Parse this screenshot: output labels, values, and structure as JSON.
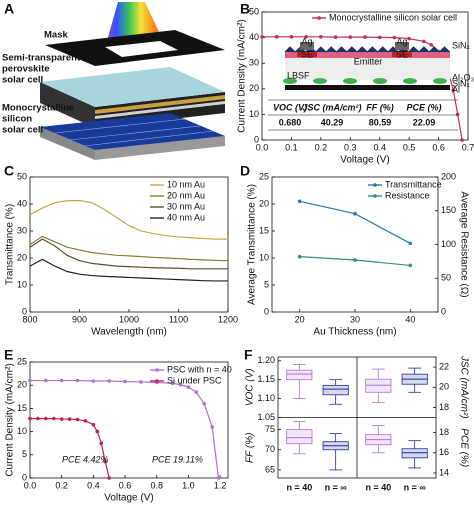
{
  "illustration": {
    "label": "A",
    "mask": "Mask",
    "perovskite": [
      "Semi-transparent",
      "perovskite",
      "solar cell"
    ],
    "silicon": [
      "Monocrystalline",
      "silicon",
      "solar cell"
    ]
  },
  "chart_data": [
    {
      "type": "line",
      "label": "B",
      "xlabel": "Voltage (V)",
      "ylabel": "Current Density (mA/cm²)",
      "xlim": [
        0,
        0.7
      ],
      "ylim": [
        0,
        50
      ],
      "xticks": [
        {
          "value": 0,
          "label": "0.0"
        },
        0.1,
        0.2,
        0.3,
        0.4,
        0.5,
        0.6,
        0.7
      ],
      "yticks": [
        0,
        10,
        20,
        30,
        40,
        50
      ],
      "markers": true,
      "legend": "upper center",
      "series": [
        {
          "name": "Monocrystalline silicon solar cell",
          "color": "#c0305a",
          "x": [
            0,
            0.05,
            0.1,
            0.15,
            0.2,
            0.25,
            0.3,
            0.35,
            0.4,
            0.45,
            0.5,
            0.55,
            0.575,
            0.6,
            0.625,
            0.65,
            0.665,
            0.68
          ],
          "values": [
            40.3,
            40.3,
            40.3,
            40.3,
            40.3,
            40.2,
            40.2,
            40.2,
            40.1,
            40.0,
            39.6,
            38.5,
            37.2,
            34.5,
            29.5,
            19.5,
            10,
            0
          ]
        }
      ],
      "inset": [
        "Ag",
        "Ag",
        "SiNₓ",
        "Emitter",
        "SE",
        "SE",
        "LBSF",
        "Al₂O₃",
        "SiNₓ",
        "Al"
      ],
      "table": {
        "header": [
          "VOC (V)",
          "JSC (mA/cm²)",
          "FF (%)",
          "PCE (%)"
        ],
        "row": [
          "0.680",
          "40.29",
          "80.59",
          "22.09"
        ]
      }
    },
    {
      "type": "line",
      "label": "C",
      "xlabel": "Wavelength (nm)",
      "ylabel": "Transmittance (%)",
      "xlim": [
        800,
        1200
      ],
      "ylim": [
        0,
        50
      ],
      "xticks": [
        800,
        900,
        1000,
        1100,
        1200
      ],
      "yticks": [
        0,
        10,
        20,
        30,
        40,
        50
      ],
      "legend": "upper right",
      "x": [
        800,
        825,
        850,
        875,
        900,
        925,
        950,
        975,
        1000,
        1025,
        1050,
        1075,
        1100,
        1125,
        1150,
        1175,
        1200
      ],
      "series": [
        {
          "name": "10 nm Au",
          "color": "#c8a845",
          "values": [
            36,
            38.5,
            40.5,
            41.2,
            41.3,
            40.5,
            38,
            35,
            32,
            30,
            29,
            28.3,
            27.8,
            27.5,
            27.2,
            27,
            27
          ]
        },
        {
          "name": "20 nm Au",
          "color": "#8c7a35",
          "values": [
            25,
            28,
            26,
            24,
            23,
            22,
            21.5,
            21,
            20.8,
            20.5,
            20.2,
            20,
            19.8,
            19.5,
            19.3,
            19.1,
            19
          ]
        },
        {
          "name": "30 nm Au",
          "color": "#5a5030",
          "values": [
            24,
            27,
            24.5,
            21,
            19,
            18,
            17.5,
            17,
            16.8,
            16.6,
            16.4,
            16.3,
            16.2,
            16,
            16,
            16,
            16
          ]
        },
        {
          "name": "40 nm Au",
          "color": "#222222",
          "values": [
            17,
            19.5,
            17,
            15,
            14,
            13.5,
            13.2,
            13,
            12.8,
            12.6,
            12.4,
            12.2,
            12,
            11.8,
            11.6,
            11.5,
            11.5
          ]
        }
      ]
    },
    {
      "type": "line",
      "label": "D",
      "xlabel": "Au Thickness (nm)",
      "ylabel": "Average Transmittance (%)",
      "y2label": "Average Resistance (Ω)",
      "xlim": [
        15,
        45
      ],
      "ylim": [
        0,
        25
      ],
      "y2lim": [
        0,
        200
      ],
      "xticks": [
        20,
        30,
        40
      ],
      "yticks": [
        0,
        5,
        10,
        15,
        20,
        25
      ],
      "y2ticks": [
        0,
        50,
        100,
        150,
        200
      ],
      "markers": true,
      "legend": "upper right",
      "x": [
        20,
        30,
        40
      ],
      "series": [
        {
          "name": "Transmittance",
          "color": "#2a78b0",
          "values": [
            20.5,
            18.2,
            12.7
          ]
        },
        {
          "name": "Resistance",
          "color": "#3a8a80",
          "axis": "y2",
          "values": [
            82,
            77,
            69
          ]
        }
      ]
    },
    {
      "type": "line",
      "label": "E",
      "xlabel": "Voltage (V)",
      "ylabel": "Current Density (mA/cm²)",
      "xlim": [
        0,
        1.25
      ],
      "ylim": [
        0,
        25
      ],
      "xticks": [
        {
          "value": 0,
          "label": "0.0"
        },
        0.2,
        0.4,
        0.6,
        0.8,
        {
          "value": 1,
          "label": "1.0"
        },
        1.2
      ],
      "yticks": [
        0,
        5,
        10,
        15,
        20,
        25
      ],
      "markers": true,
      "legend": "upper right",
      "annotations": [
        "PCE 4.42%",
        "PCE 19.11%"
      ],
      "series": [
        {
          "name": "PSC with n = 40",
          "color": "#b070d0",
          "x": [
            0,
            0.1,
            0.2,
            0.3,
            0.4,
            0.5,
            0.6,
            0.7,
            0.8,
            0.9,
            0.95,
            1.0,
            1.05,
            1.1,
            1.15,
            1.19
          ],
          "values": [
            21,
            21,
            21,
            21,
            20.9,
            20.9,
            20.8,
            20.7,
            20.6,
            20.4,
            20.1,
            19.6,
            18.5,
            16,
            11,
            0
          ]
        },
        {
          "name": "Si under PSC",
          "color": "#c0205a",
          "x": [
            0,
            0.05,
            0.1,
            0.15,
            0.2,
            0.25,
            0.3,
            0.35,
            0.4,
            0.425,
            0.45,
            0.475,
            0.5
          ],
          "values": [
            12.8,
            12.8,
            12.8,
            12.8,
            12.7,
            12.7,
            12.6,
            12.3,
            11.5,
            10,
            7.5,
            3.5,
            0
          ]
        }
      ]
    },
    {
      "type": "box",
      "label": "F",
      "categories": [
        "n = 40",
        "n = ∞"
      ],
      "colors": [
        "#b070d0",
        "#1a2a9a"
      ],
      "panels": [
        {
          "ylabel": "VOC (V)",
          "ylim": [
            1.05,
            1.21
          ],
          "yticks": [
            {
              "value": 1.05,
              "label": "1.05"
            },
            {
              "value": 1.1,
              "label": "1.10"
            },
            1.15,
            {
              "value": 1.2,
              "label": "1.20"
            }
          ],
          "boxes": [
            {
              "min": 1.1,
              "q1": 1.15,
              "median": 1.165,
              "q3": 1.175,
              "max": 1.19
            },
            {
              "min": 1.085,
              "q1": 1.11,
              "median": 1.125,
              "q3": 1.135,
              "max": 1.15
            }
          ]
        },
        {
          "ylabel": "JSC (mA/cm²)",
          "ylim": [
            17,
            23
          ],
          "yticks": [
            18,
            20,
            22
          ],
          "boxes": [
            {
              "min": 18.5,
              "q1": 19.5,
              "median": 20.2,
              "q3": 20.8,
              "max": 21.8
            },
            {
              "min": 19.5,
              "q1": 20.3,
              "median": 20.8,
              "q3": 21.3,
              "max": 21.9
            }
          ]
        },
        {
          "ylabel": "FF (%)",
          "ylim": [
            63,
            78
          ],
          "yticks": [
            65,
            70,
            75
          ],
          "boxes": [
            {
              "min": 69,
              "q1": 71.5,
              "median": 73,
              "q3": 75,
              "max": 77
            },
            {
              "min": 65,
              "q1": 70,
              "median": 71,
              "q3": 72,
              "max": 74
            }
          ]
        },
        {
          "ylabel": "PCE (%)",
          "ylim": [
            13.5,
            19.5
          ],
          "yticks": [
            14,
            16,
            18
          ],
          "boxes": [
            {
              "min": 16,
              "q1": 16.8,
              "median": 17.3,
              "q3": 17.8,
              "max": 18.7
            },
            {
              "min": 14.5,
              "q1": 15.5,
              "median": 16,
              "q3": 16.4,
              "max": 17.2
            }
          ]
        }
      ]
    }
  ]
}
